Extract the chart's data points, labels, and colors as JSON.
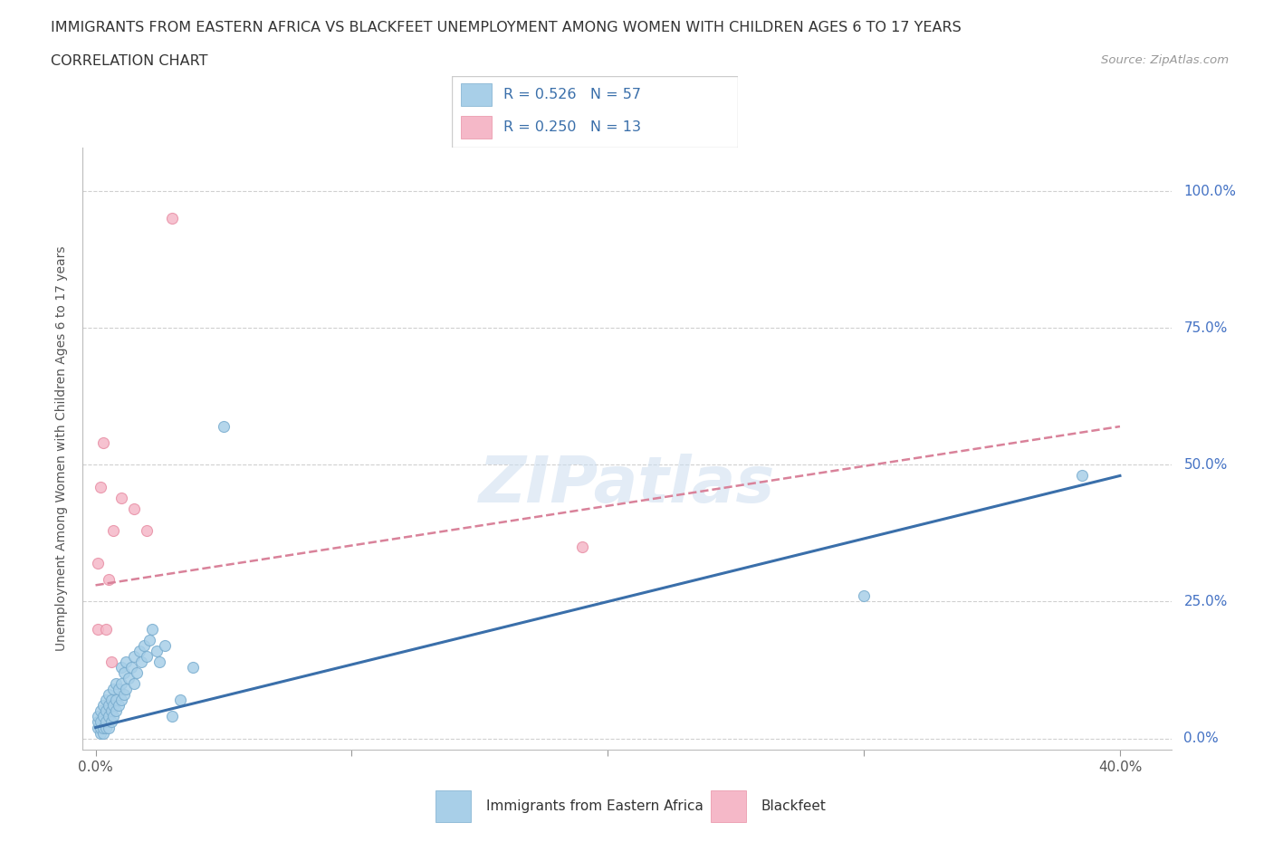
{
  "title": "IMMIGRANTS FROM EASTERN AFRICA VS BLACKFEET UNEMPLOYMENT AMONG WOMEN WITH CHILDREN AGES 6 TO 17 YEARS",
  "subtitle": "CORRELATION CHART",
  "source": "Source: ZipAtlas.com",
  "ylabel": "Unemployment Among Women with Children Ages 6 to 17 years",
  "xlim": [
    -0.005,
    0.42
  ],
  "ylim": [
    -0.02,
    1.08
  ],
  "xtick_positions": [
    0.0,
    0.1,
    0.2,
    0.3,
    0.4
  ],
  "ytick_positions": [
    0.0,
    0.25,
    0.5,
    0.75,
    1.0
  ],
  "right_ytick_labels": [
    "0.0%",
    "25.0%",
    "50.0%",
    "75.0%",
    "100.0%"
  ],
  "blue_R": 0.526,
  "blue_N": 57,
  "pink_R": 0.25,
  "pink_N": 13,
  "blue_color": "#a8cfe8",
  "pink_color": "#f5b8c8",
  "blue_edge_color": "#7aadcf",
  "pink_edge_color": "#e88fa5",
  "blue_line_color": "#3a6faa",
  "pink_line_color": "#d9829a",
  "legend_label_blue": "Immigrants from Eastern Africa",
  "legend_label_pink": "Blackfeet",
  "watermark_text": "ZIPatlas",
  "blue_scatter_x": [
    0.001,
    0.001,
    0.001,
    0.002,
    0.002,
    0.002,
    0.002,
    0.003,
    0.003,
    0.003,
    0.003,
    0.004,
    0.004,
    0.004,
    0.004,
    0.005,
    0.005,
    0.005,
    0.005,
    0.006,
    0.006,
    0.006,
    0.007,
    0.007,
    0.007,
    0.008,
    0.008,
    0.008,
    0.009,
    0.009,
    0.01,
    0.01,
    0.01,
    0.011,
    0.011,
    0.012,
    0.012,
    0.013,
    0.014,
    0.015,
    0.015,
    0.016,
    0.017,
    0.018,
    0.019,
    0.02,
    0.021,
    0.022,
    0.024,
    0.025,
    0.027,
    0.03,
    0.033,
    0.038,
    0.05,
    0.3,
    0.385
  ],
  "blue_scatter_y": [
    0.02,
    0.03,
    0.04,
    0.01,
    0.02,
    0.03,
    0.05,
    0.01,
    0.02,
    0.04,
    0.06,
    0.02,
    0.03,
    0.05,
    0.07,
    0.02,
    0.04,
    0.06,
    0.08,
    0.03,
    0.05,
    0.07,
    0.04,
    0.06,
    0.09,
    0.05,
    0.07,
    0.1,
    0.06,
    0.09,
    0.07,
    0.1,
    0.13,
    0.08,
    0.12,
    0.09,
    0.14,
    0.11,
    0.13,
    0.1,
    0.15,
    0.12,
    0.16,
    0.14,
    0.17,
    0.15,
    0.18,
    0.2,
    0.16,
    0.14,
    0.17,
    0.04,
    0.07,
    0.13,
    0.57,
    0.26,
    0.48
  ],
  "pink_scatter_x": [
    0.001,
    0.001,
    0.002,
    0.003,
    0.004,
    0.005,
    0.006,
    0.007,
    0.01,
    0.015,
    0.02,
    0.19,
    0.03
  ],
  "pink_scatter_y": [
    0.2,
    0.32,
    0.46,
    0.54,
    0.2,
    0.29,
    0.14,
    0.38,
    0.44,
    0.42,
    0.38,
    0.35,
    0.95
  ],
  "blue_line_x": [
    0.0,
    0.4
  ],
  "blue_line_y": [
    0.02,
    0.48
  ],
  "pink_line_x": [
    0.0,
    0.4
  ],
  "pink_line_y": [
    0.28,
    0.57
  ]
}
